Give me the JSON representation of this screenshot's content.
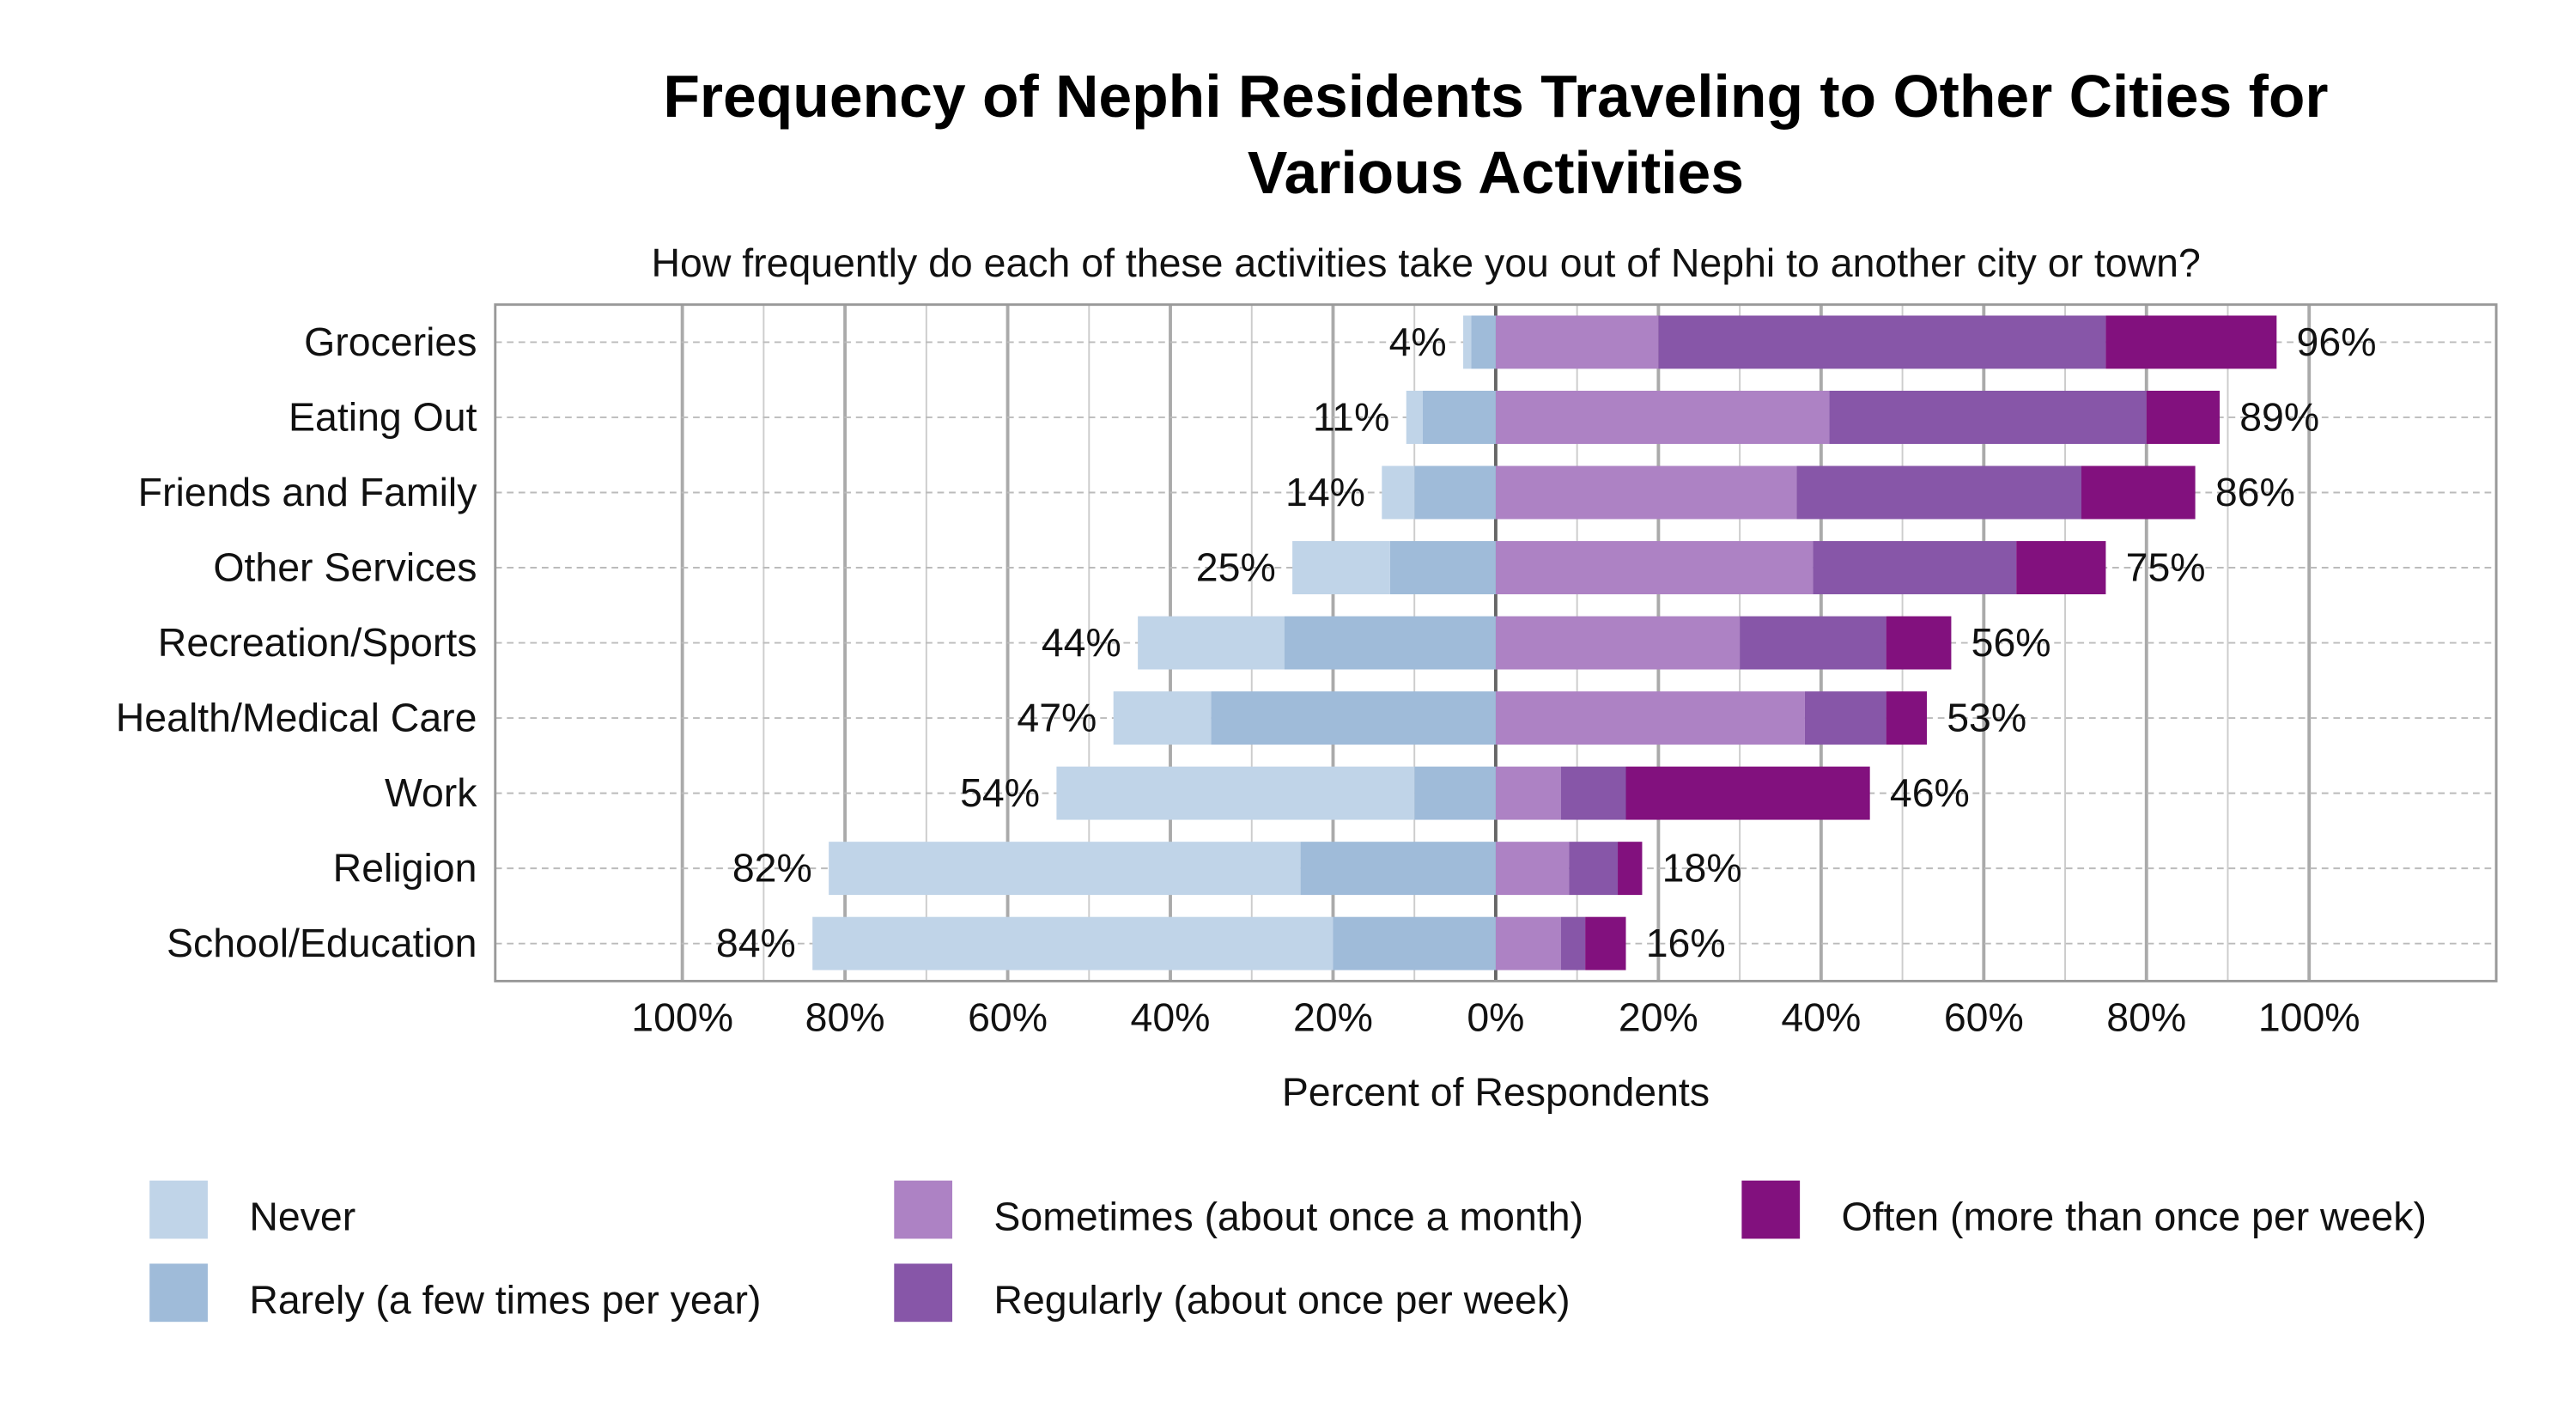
{
  "chart_data": {
    "type": "bar",
    "orientation": "horizontal-diverging-stacked",
    "title": "Frequency of Nephi Residents Traveling to Other Cities for Various Activities",
    "subtitle": "How frequently do each of these activities take you out of Nephi to another city or town?",
    "xlabel": "Percent of Respondents",
    "xlim": [
      -123,
      123
    ],
    "x_ticks": [
      -100,
      -80,
      -60,
      -40,
      -20,
      0,
      20,
      40,
      60,
      80,
      100
    ],
    "x_tick_labels": [
      "100%",
      "80%",
      "60%",
      "40%",
      "20%",
      "0%",
      "20%",
      "40%",
      "60%",
      "80%",
      "100%"
    ],
    "grid": true,
    "legend_position": "bottom",
    "categories": [
      "Groceries",
      "Eating Out",
      "Friends and Family",
      "Other Services",
      "Recreation/Sports",
      "Health/Medical Care",
      "Work",
      "Religion",
      "School/Education"
    ],
    "series": [
      {
        "name": "Never",
        "side": "left",
        "color": "#c0d4e8",
        "values": [
          1,
          2,
          4,
          12,
          18,
          12,
          44,
          58,
          64
        ]
      },
      {
        "name": "Rarely (a few times per year)",
        "side": "left",
        "color": "#9fbbd9",
        "values": [
          3,
          9,
          10,
          13,
          26,
          35,
          10,
          24,
          20
        ]
      },
      {
        "name": "Sometimes (about once a month)",
        "side": "right",
        "color": "#ad82c4",
        "values": [
          20,
          41,
          37,
          39,
          30,
          38,
          8,
          9,
          8
        ]
      },
      {
        "name": "Regularly (about once per week)",
        "side": "right",
        "color": "#8756a8",
        "values": [
          55,
          39,
          35,
          25,
          18,
          10,
          8,
          6,
          3
        ]
      },
      {
        "name": "Often (more than once per week)",
        "side": "right",
        "color": "#82117e",
        "values": [
          21,
          9,
          14,
          11,
          8,
          5,
          30,
          3,
          5
        ]
      }
    ],
    "left_totals": [
      "4%",
      "11%",
      "14%",
      "25%",
      "44%",
      "47%",
      "54%",
      "82%",
      "84%"
    ],
    "right_totals": [
      "96%",
      "89%",
      "86%",
      "75%",
      "56%",
      "53%",
      "46%",
      "18%",
      "16%"
    ],
    "legend_order": [
      0,
      2,
      4,
      1,
      3
    ]
  }
}
